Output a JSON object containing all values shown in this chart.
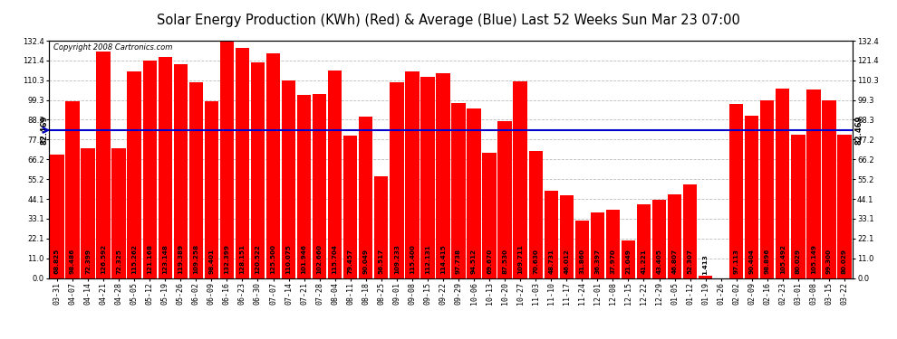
{
  "title": "Solar Energy Production (KWh) (Red) & Average (Blue) Last 52 Weeks Sun Mar 23 07:00",
  "copyright": "Copyright 2008 Cartronics.com",
  "average": 82.469,
  "bar_color": "#ff0000",
  "average_line_color": "#0000cc",
  "background_color": "#ffffff",
  "plot_bg_color": "#ffffff",
  "grid_color": "#bbbbbb",
  "ylim": [
    0,
    132.4
  ],
  "yticks": [
    0.0,
    11.0,
    22.1,
    33.1,
    44.1,
    55.2,
    66.2,
    77.2,
    88.3,
    99.3,
    110.3,
    121.4,
    132.4
  ],
  "labels": [
    "03-31",
    "04-07",
    "04-14",
    "04-21",
    "04-28",
    "05-05",
    "05-12",
    "05-19",
    "05-26",
    "06-02",
    "06-09",
    "06-16",
    "06-23",
    "06-30",
    "07-07",
    "07-14",
    "07-21",
    "07-28",
    "08-04",
    "08-11",
    "08-18",
    "08-25",
    "09-01",
    "09-08",
    "09-15",
    "09-22",
    "09-29",
    "10-06",
    "10-13",
    "10-20",
    "10-27",
    "11-03",
    "11-10",
    "11-17",
    "11-24",
    "12-01",
    "12-08",
    "12-15",
    "12-22",
    "12-29",
    "01-05",
    "01-12",
    "01-19",
    "01-26",
    "02-02",
    "02-09",
    "02-16",
    "02-23",
    "03-01",
    "03-08",
    "03-15",
    "03-22"
  ],
  "values": [
    68.825,
    98.486,
    72.399,
    126.592,
    72.325,
    115.262,
    121.168,
    123.148,
    119.389,
    109.258,
    98.401,
    132.399,
    128.151,
    120.522,
    125.5,
    110.075,
    101.946,
    102.66,
    115.704,
    79.457,
    90.049,
    56.517,
    109.233,
    115.4,
    112.131,
    114.415,
    97.738,
    94.512,
    69.67,
    87.53,
    109.711,
    70.63,
    48.731,
    46.012,
    31.86,
    36.397,
    37.97,
    21.049,
    41.221,
    43.405,
    46.807,
    52.307,
    1.413,
    0.0,
    97.113,
    90.404,
    98.896,
    105.492,
    80.029,
    105.149,
    99.3,
    80.029
  ],
  "value_fontsize": 5.2,
  "tick_fontsize": 6.0,
  "title_fontsize": 10.5,
  "copyright_fontsize": 6.0
}
